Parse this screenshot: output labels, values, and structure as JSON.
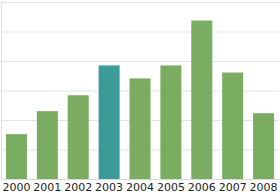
{
  "chart_data": {
    "type": "bar",
    "categories": [
      "2000",
      "2001",
      "2002",
      "2003",
      "2004",
      "2005",
      "2006",
      "2007",
      "2008"
    ],
    "values": [
      1.52,
      2.3,
      2.84,
      3.85,
      3.41,
      3.85,
      5.37,
      3.61,
      2.23
    ],
    "colors": [
      "#7aac62",
      "#7aac62",
      "#7aac62",
      "#3a9b97",
      "#7aac62",
      "#7aac62",
      "#7aac62",
      "#7aac62",
      "#7aac62"
    ],
    "ylim": [
      0,
      6
    ],
    "yticks": [
      0,
      1,
      2,
      3,
      4,
      5,
      6
    ],
    "grid": true,
    "tick_labels": "x"
  }
}
